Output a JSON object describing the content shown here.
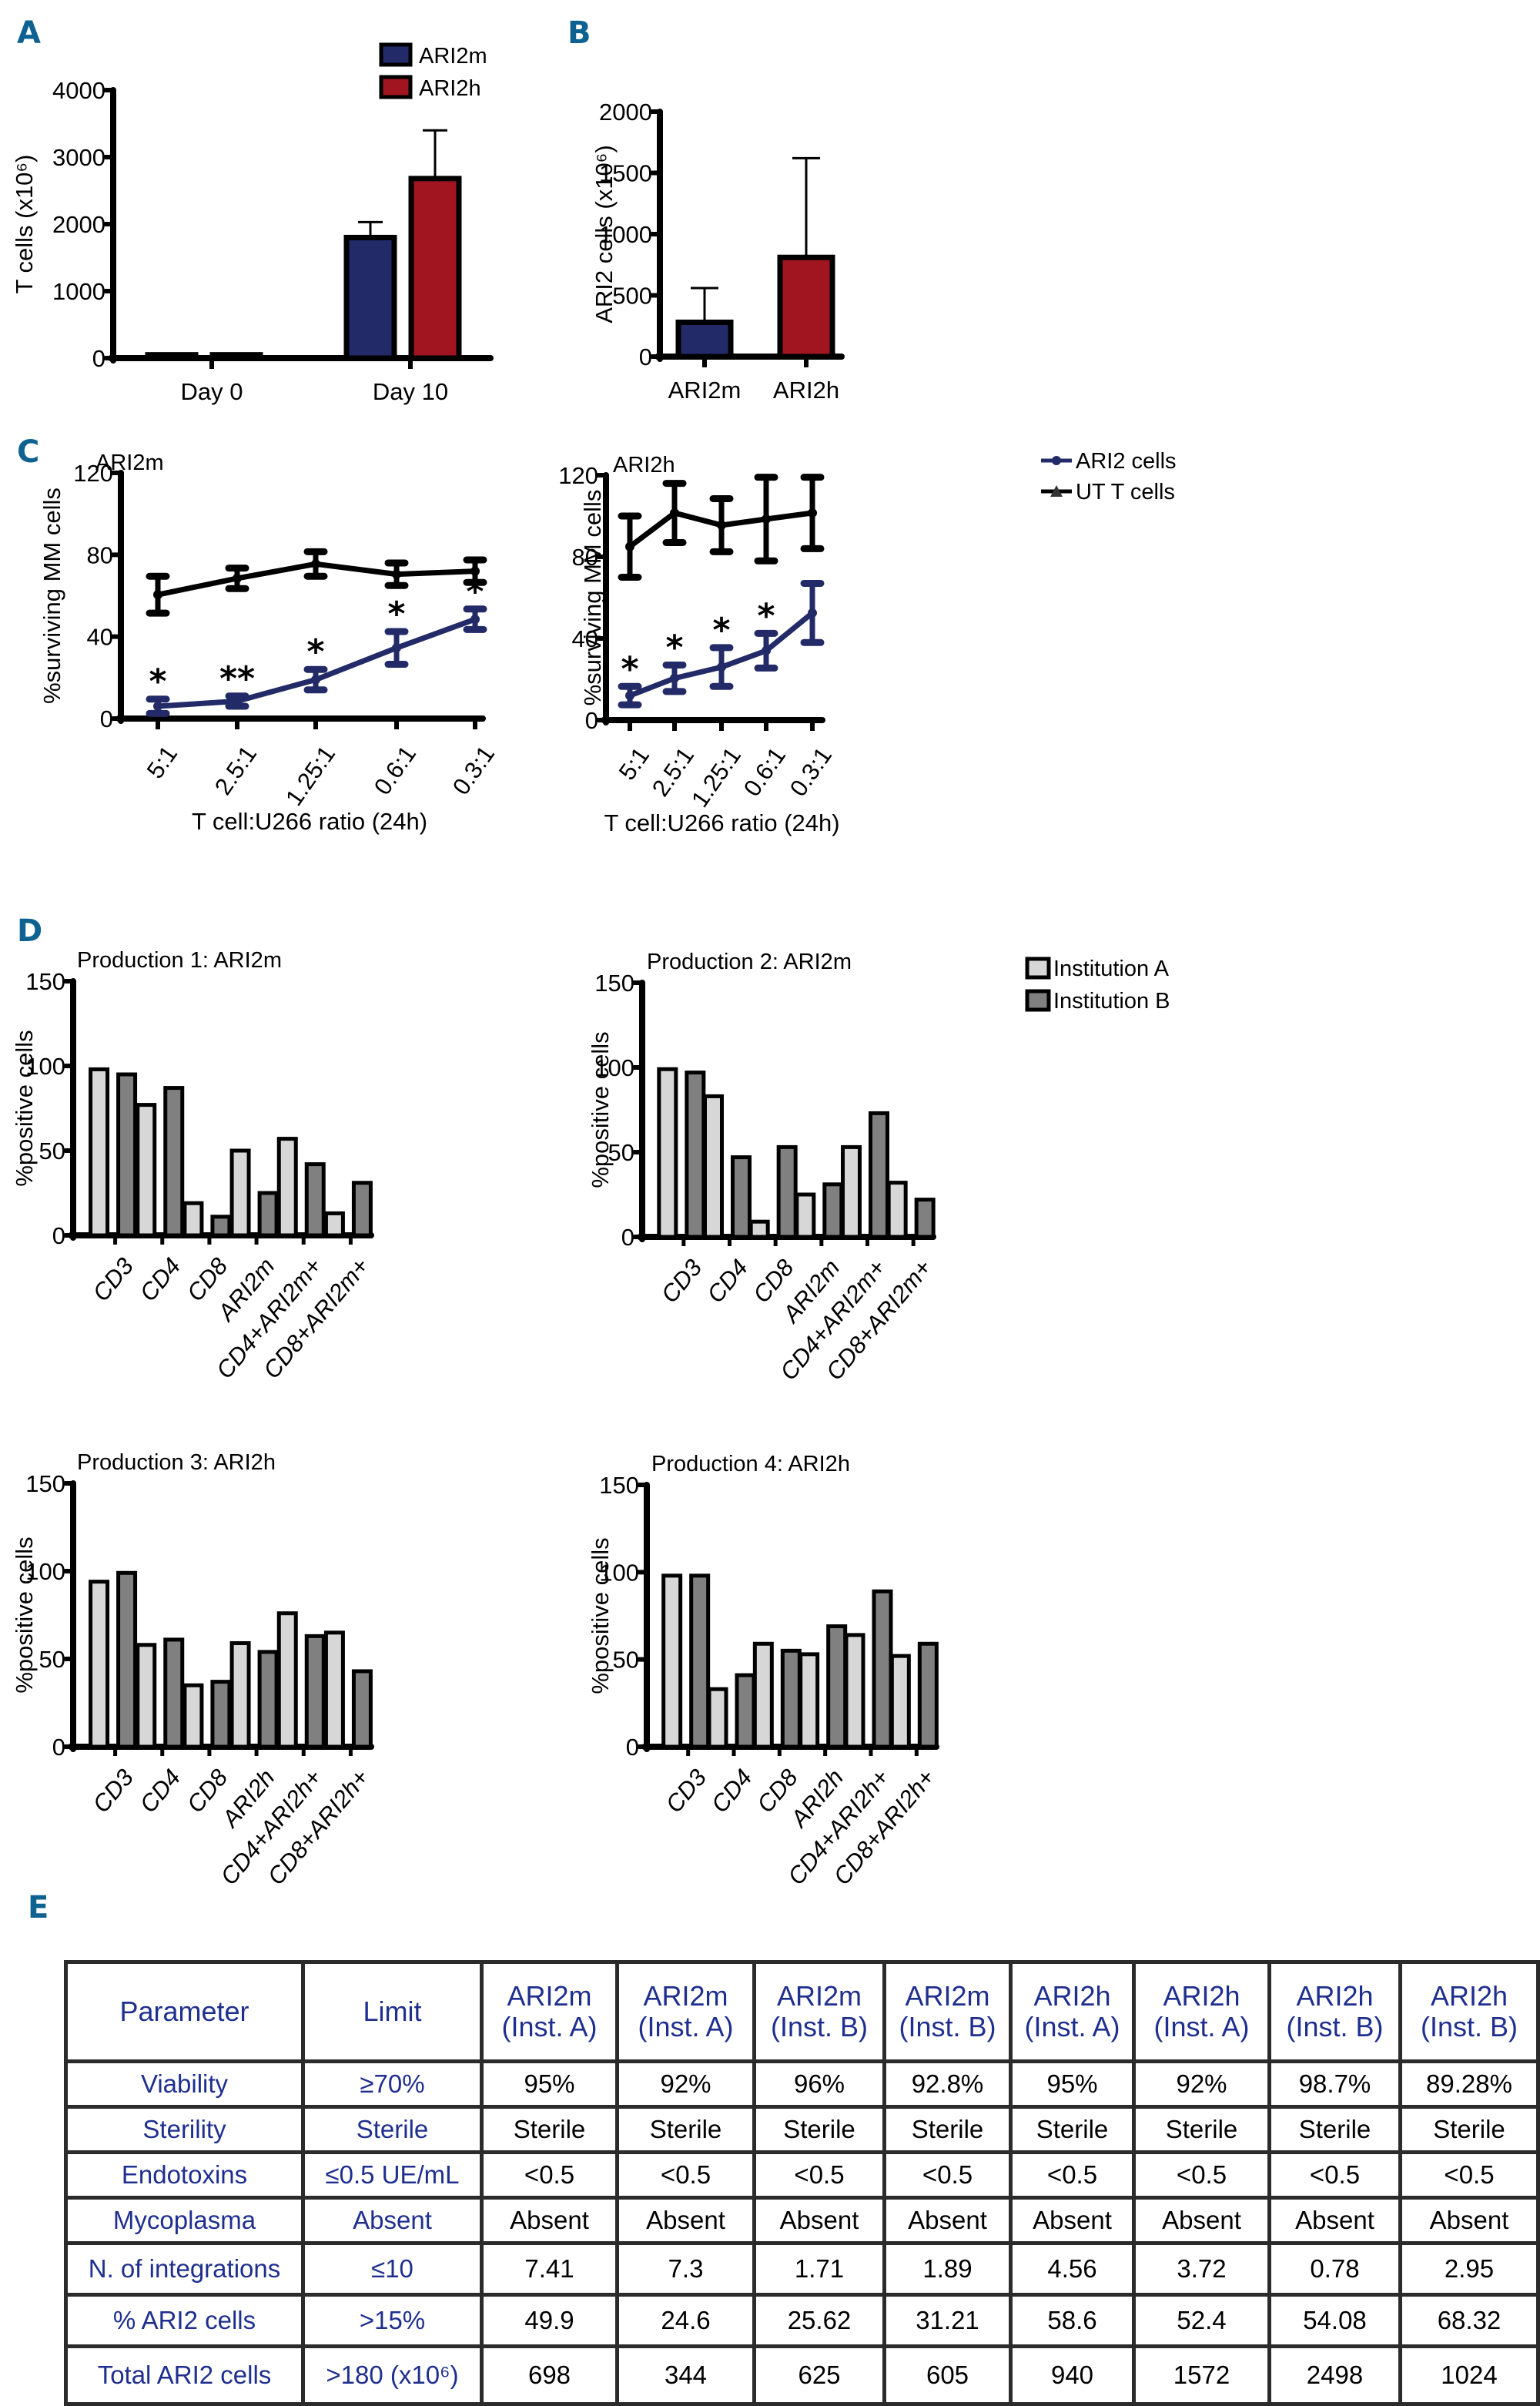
{
  "panel_labels": {
    "a": "A",
    "b": "B",
    "c": "C",
    "d": "D",
    "e": "E"
  },
  "colors": {
    "ari2m": "#222a67",
    "ari2h": "#a0151f",
    "inst_a": "#d7d7d7",
    "inst_b": "#808080",
    "panel_label": "#0e6291",
    "table_text_blue": "#1f2f8f"
  },
  "chart_data": [
    {
      "id": "A",
      "type": "bar",
      "title": "",
      "xlabel": "",
      "ylabel": "T cells (x10⁶)",
      "categories": [
        "Day 0",
        "Day 10"
      ],
      "series": [
        {
          "name": "ARI2m",
          "values": [
            50,
            1800
          ],
          "error": [
            0,
            230
          ]
        },
        {
          "name": "ARI2h",
          "values": [
            50,
            2680
          ],
          "error": [
            0,
            720
          ]
        }
      ],
      "ylim": [
        0,
        4000
      ],
      "yticks": [
        0,
        1000,
        2000,
        3000,
        4000
      ],
      "legend": "top-right",
      "grid": false
    },
    {
      "id": "B",
      "type": "bar",
      "title": "",
      "xlabel": "",
      "ylabel": "ARI2 cells (x10⁶)",
      "categories": [
        "ARI2m",
        "ARI2h"
      ],
      "values": [
        280,
        810
      ],
      "error": [
        280,
        810
      ],
      "ylim": [
        0,
        2000
      ],
      "yticks": [
        0,
        500,
        1000,
        1500,
        2000
      ],
      "grid": false
    },
    {
      "id": "C-left",
      "type": "line",
      "title": "ARI2m",
      "xlabel": "T cell:U266 ratio (24h)",
      "ylabel": "%surviving MM cells",
      "x": [
        "5:1",
        "2.5:1",
        "1.25:1",
        "0.6:1",
        "0.3:1"
      ],
      "series": [
        {
          "name": "ARI2 cells",
          "values": [
            6,
            8.5,
            19,
            34.5,
            48.5
          ],
          "error": [
            3.5,
            2.5,
            5,
            8,
            5
          ],
          "significance": [
            "*",
            "**",
            "*",
            "*",
            "*"
          ]
        },
        {
          "name": "UT T cells",
          "values": [
            60.5,
            68.5,
            75.5,
            70.5,
            72
          ],
          "error": [
            9,
            5,
            6,
            5.5,
            5.5
          ]
        }
      ],
      "ylim": [
        0,
        120
      ],
      "yticks": [
        0,
        40,
        80,
        120
      ],
      "grid": false
    },
    {
      "id": "C-right",
      "type": "line",
      "title": "ARI2h",
      "xlabel": "T cell:U266 ratio (24h)",
      "ylabel": "%surviving MM cells",
      "x": [
        "5:1",
        "2.5:1",
        "1.25:1",
        "0.6:1",
        "0.3:1"
      ],
      "series": [
        {
          "name": "ARI2 cells",
          "values": [
            12,
            20.5,
            26,
            34,
            52.5
          ],
          "error": [
            4.5,
            6.5,
            9.5,
            8.5,
            14.5
          ],
          "significance": [
            "*",
            "*",
            "*",
            "*",
            ""
          ]
        },
        {
          "name": "UT T cells",
          "values": [
            85,
            101.5,
            95.5,
            98.5,
            101.5
          ],
          "error": [
            15,
            14.5,
            13,
            20.5,
            17.5
          ]
        }
      ],
      "ylim": [
        0,
        120
      ],
      "yticks": [
        0,
        40,
        80,
        120
      ],
      "legend": "top-right",
      "grid": false
    },
    {
      "id": "D1",
      "type": "bar",
      "title": "Production 1: ARI2m",
      "xlabel": "",
      "ylabel": "%positive cells",
      "categories": [
        "CD3",
        "CD4",
        "CD8",
        "ARI2m",
        "CD4+ARI2m+",
        "CD8+ARI2m+"
      ],
      "series": [
        {
          "name": "Institution A",
          "values": [
            98,
            77,
            19,
            50,
            57,
            13
          ]
        },
        {
          "name": "Institution B",
          "values": [
            95,
            87,
            11,
            25,
            42,
            31
          ]
        }
      ],
      "ylim": [
        0,
        150
      ],
      "yticks": [
        0,
        50,
        100,
        150
      ],
      "grid": false
    },
    {
      "id": "D2",
      "type": "bar",
      "title": "Production 2: ARI2m",
      "xlabel": "",
      "ylabel": "%positive cells",
      "categories": [
        "CD3",
        "CD4",
        "CD8",
        "ARI2m",
        "CD4+ARI2m+",
        "CD8+ARI2m+"
      ],
      "series": [
        {
          "name": "Institution A",
          "values": [
            99,
            83,
            9,
            25,
            53,
            32
          ]
        },
        {
          "name": "Institution B",
          "values": [
            97,
            47,
            53,
            31,
            73,
            22
          ]
        }
      ],
      "ylim": [
        0,
        150
      ],
      "yticks": [
        0,
        50,
        100,
        150
      ],
      "legend": "top-right",
      "grid": false
    },
    {
      "id": "D3",
      "type": "bar",
      "title": "Production 3: ARI2h",
      "xlabel": "",
      "ylabel": "%positive cells",
      "categories": [
        "CD3",
        "CD4",
        "CD8",
        "ARI2h",
        "CD4+ARI2h+",
        "CD8+ARI2h+"
      ],
      "series": [
        {
          "name": "Institution A",
          "values": [
            94,
            58,
            35,
            59,
            76,
            65
          ]
        },
        {
          "name": "Institution B",
          "values": [
            99,
            61,
            37,
            54,
            63,
            43
          ]
        }
      ],
      "ylim": [
        0,
        150
      ],
      "yticks": [
        0,
        50,
        100,
        150
      ],
      "grid": false
    },
    {
      "id": "D4",
      "type": "bar",
      "title": "Production 4: ARI2h",
      "xlabel": "",
      "ylabel": "%positive cells",
      "categories": [
        "CD3",
        "CD4",
        "CD8",
        "ARI2h",
        "CD4+ARI2h+",
        "CD8+ARI2h+"
      ],
      "series": [
        {
          "name": "Institution A",
          "values": [
            98,
            33,
            59,
            53,
            64,
            52
          ]
        },
        {
          "name": "Institution B",
          "values": [
            98,
            41,
            55,
            69,
            89,
            59
          ]
        }
      ],
      "ylim": [
        0,
        150
      ],
      "yticks": [
        0,
        50,
        100,
        150
      ],
      "grid": false
    },
    {
      "id": "E",
      "type": "table",
      "columns": [
        "Parameter",
        "Limit",
        "ARI2m (Inst. A)",
        "ARI2m (Inst. A)",
        "ARI2m (Inst. B)",
        "ARI2m (Inst. B)",
        "ARI2h (Inst. A)",
        "ARI2h (Inst. A)",
        "ARI2h (Inst. B)",
        "ARI2h (Inst. B)"
      ],
      "rows": [
        [
          "Viability",
          "≥70%",
          "95%",
          "92%",
          "96%",
          "92.8%",
          "95%",
          "92%",
          "98.7%",
          "89.28%"
        ],
        [
          "Sterility",
          "Sterile",
          "Sterile",
          "Sterile",
          "Sterile",
          "Sterile",
          "Sterile",
          "Sterile",
          "Sterile",
          "Sterile"
        ],
        [
          "Endotoxins",
          "≤0.5 UE/mL",
          "<0.5",
          "<0.5",
          "<0.5",
          "<0.5",
          "<0.5",
          "<0.5",
          "<0.5",
          "<0.5"
        ],
        [
          "Mycoplasma",
          "Absent",
          "Absent",
          "Absent",
          "Absent",
          "Absent",
          "Absent",
          "Absent",
          "Absent",
          "Absent"
        ],
        [
          "N. of integrations",
          "≤10",
          "7.41",
          "7.3",
          "1.71",
          "1.89",
          "4.56",
          "3.72",
          "0.78",
          "2.95"
        ],
        [
          "% ARI2 cells",
          ">15%",
          "49.9",
          "24.6",
          "25.62",
          "31.21",
          "58.6",
          "52.4",
          "54.08",
          "68.32"
        ],
        [
          "Total ARI2 cells",
          ">180 (x10⁶)",
          "698",
          "344",
          "625",
          "605",
          "940",
          "1572",
          "2498",
          "1024"
        ]
      ]
    }
  ],
  "table": {
    "header": [
      {
        "l1": "Parameter",
        "l2": ""
      },
      {
        "l1": "Limit",
        "l2": ""
      },
      {
        "l1": "ARI2m",
        "l2": "(Inst. A)"
      },
      {
        "l1": "ARI2m",
        "l2": "(Inst. A)"
      },
      {
        "l1": "ARI2m",
        "l2": "(Inst. B)"
      },
      {
        "l1": "ARI2m",
        "l2": "(Inst. B)"
      },
      {
        "l1": "ARI2h",
        "l2": "(Inst. A)"
      },
      {
        "l1": "ARI2h",
        "l2": "(Inst. A)"
      },
      {
        "l1": "ARI2h",
        "l2": "(Inst. B)"
      },
      {
        "l1": "ARI2h",
        "l2": "(Inst. B)"
      }
    ],
    "rows": [
      [
        "Viability",
        "≥70%",
        "95%",
        "92%",
        "96%",
        "92.8%",
        "95%",
        "92%",
        "98.7%",
        "89.28%"
      ],
      [
        "Sterility",
        "Sterile",
        "Sterile",
        "Sterile",
        "Sterile",
        "Sterile",
        "Sterile",
        "Sterile",
        "Sterile",
        "Sterile"
      ],
      [
        "Endotoxins",
        "≤0.5 UE/mL",
        "<0.5",
        "<0.5",
        "<0.5",
        "<0.5",
        "<0.5",
        "<0.5",
        "<0.5",
        "<0.5"
      ],
      [
        "Mycoplasma",
        "Absent",
        "Absent",
        "Absent",
        "Absent",
        "Absent",
        "Absent",
        "Absent",
        "Absent",
        "Absent"
      ],
      [
        "N. of integrations",
        "≤10",
        "7.41",
        "7.3",
        "1.71",
        "1.89",
        "4.56",
        "3.72",
        "0.78",
        "2.95"
      ],
      [
        "% ARI2 cells",
        ">15%",
        "49.9",
        "24.6",
        "25.62",
        "31.21",
        "58.6",
        "52.4",
        "54.08",
        "68.32"
      ],
      [
        "Total ARI2 cells",
        ">180 (x10⁶)",
        "698",
        "344",
        "625",
        "605",
        "940",
        "1572",
        "2498",
        "1024"
      ]
    ]
  }
}
